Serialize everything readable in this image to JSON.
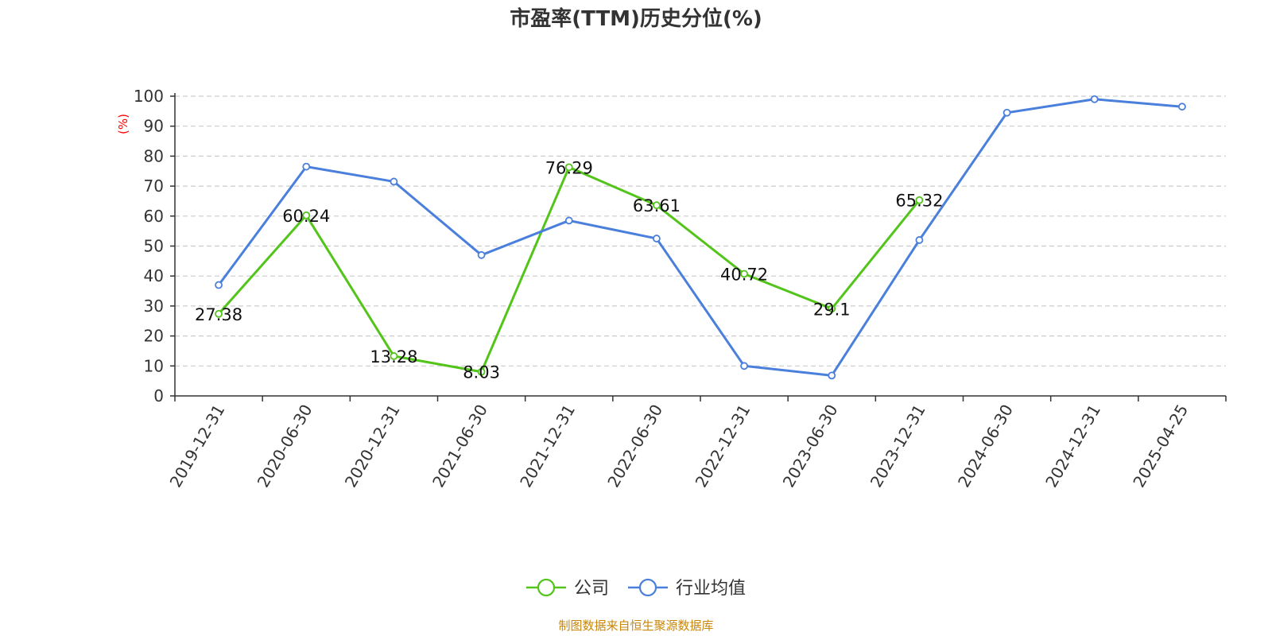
{
  "chart_data": {
    "type": "line",
    "title": "市盈率(TTM)历史分位(%)",
    "ylabel": "(%)",
    "ylim": [
      0,
      100
    ],
    "yticks": [
      0,
      10,
      20,
      30,
      40,
      50,
      60,
      70,
      80,
      90,
      100
    ],
    "grid": true,
    "legend_position": "bottom-center",
    "categories": [
      "2019-12-31",
      "2020-06-30",
      "2020-12-31",
      "2021-06-30",
      "2021-12-31",
      "2022-06-30",
      "2022-12-31",
      "2023-06-30",
      "2023-12-31",
      "2024-06-30",
      "2024-12-31",
      "2025-04-25"
    ],
    "series": [
      {
        "name": "公司",
        "color": "#52c41a",
        "values": [
          27.38,
          60.24,
          13.28,
          8.03,
          76.29,
          63.61,
          40.72,
          29.1,
          65.32,
          null,
          null,
          null
        ],
        "labels": [
          "27.38",
          "60.24",
          "13.28",
          "8.03",
          "76.29",
          "63.61",
          "40.72",
          "29.1",
          "65.32",
          null,
          null,
          null
        ]
      },
      {
        "name": "行业均值",
        "color": "#4a7fdc",
        "values": [
          37,
          76.5,
          71.5,
          47,
          58.5,
          52.5,
          10,
          6.8,
          52,
          94.5,
          99,
          96.5
        ]
      }
    ],
    "source": "制图数据来自恒生聚源数据库"
  }
}
